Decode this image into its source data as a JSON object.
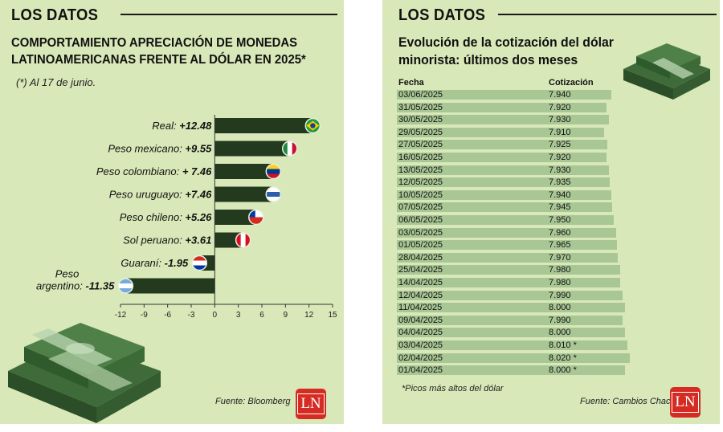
{
  "left": {
    "section_tag": "LOS DATOS",
    "title_line1": "COMPORTAMIENTO APRECIACIÓN DE MONEDAS",
    "title_line2": "LATINOAMERICANAS FRENTE AL DÓLAR EN 2025*",
    "note": "(*) Al 17 de junio.",
    "source": "Fuente: Bloomberg",
    "logo": "LN"
  },
  "right": {
    "section_tag": "LOS DATOS",
    "title_line1": "Evolución de la cotización del dólar",
    "title_line2": "minorista: últimos dos meses",
    "col_date": "Fecha",
    "col_value": "Cotización",
    "footnote": "*Picos más altos del dólar",
    "source": "Fuente: Cambios Chaco",
    "logo": "LN",
    "rows": [
      {
        "date": "03/06/2025",
        "value": "7.940",
        "num": 7940
      },
      {
        "date": "31/05/2025",
        "value": "7.920",
        "num": 7920
      },
      {
        "date": "30/05/2025",
        "value": "7.930",
        "num": 7930
      },
      {
        "date": "29/05/2025",
        "value": "7.910",
        "num": 7910
      },
      {
        "date": "27/05/2025",
        "value": "7.925",
        "num": 7925
      },
      {
        "date": "16/05/2025",
        "value": "7.920",
        "num": 7920
      },
      {
        "date": "13/05/2025",
        "value": "7.930",
        "num": 7930
      },
      {
        "date": "12/05/2025",
        "value": "7.935",
        "num": 7935
      },
      {
        "date": "10/05/2025",
        "value": "7.940",
        "num": 7940
      },
      {
        "date": "07/05/2025",
        "value": "7.945",
        "num": 7945
      },
      {
        "date": "06/05/2025",
        "value": "7.950",
        "num": 7950
      },
      {
        "date": "03/05/2025",
        "value": "7.960",
        "num": 7960
      },
      {
        "date": "01/05/2025",
        "value": "7.965",
        "num": 7965
      },
      {
        "date": "28/04/2025",
        "value": "7.970",
        "num": 7970
      },
      {
        "date": "25/04/2025",
        "value": "7.980",
        "num": 7980
      },
      {
        "date": "14/04/2025",
        "value": "7.980",
        "num": 7980
      },
      {
        "date": "12/04/2025",
        "value": "7.990",
        "num": 7990
      },
      {
        "date": "11/04/2025",
        "value": "8.000",
        "num": 8000
      },
      {
        "date": "09/04/2025",
        "value": "7.990",
        "num": 7990
      },
      {
        "date": "04/04/2025",
        "value": "8.000",
        "num": 8000
      },
      {
        "date": "03/04/2025",
        "value": "8.010 *",
        "num": 8010
      },
      {
        "date": "02/04/2025",
        "value": "8.020 *",
        "num": 8020
      },
      {
        "date": "01/04/2025",
        "value": "8.000 *",
        "num": 8000
      }
    ]
  },
  "chart_data": [
    {
      "type": "bar",
      "orientation": "horizontal",
      "title": "COMPORTAMIENTO APRECIACIÓN DE MONEDAS LATINOAMERICANAS FRENTE AL DÓLAR EN 2025*",
      "categories": [
        "Real",
        "Peso mexicano",
        "Peso colombiano",
        "Peso uruguayo",
        "Peso chileno",
        "Sol peruano",
        "Guaraní",
        "Peso argentino"
      ],
      "values": [
        12.48,
        9.55,
        7.46,
        7.46,
        5.26,
        3.61,
        -1.95,
        -11.35
      ],
      "labels": [
        "Real: +12.48",
        "Peso mexicano: +9.55",
        "Peso colombiano: + 7.46",
        "Peso uruguayo: +7.46",
        "Peso chileno: +5.26",
        "Sol peruano: +3.61",
        "Guaraní: -1.95",
        "argentino: -11.35"
      ],
      "label_prefix_extra": "Peso",
      "flags": [
        "brazil-flag",
        "mexico-flag",
        "colombia-flag",
        "uruguay-flag",
        "chile-flag",
        "peru-flag",
        "paraguay-flag",
        "argentina-flag"
      ],
      "xlim": [
        -12,
        15
      ],
      "xticks": [
        "-12",
        "-9",
        "-6",
        "-3",
        "0",
        "3",
        "6",
        "9",
        "12",
        "15"
      ],
      "bar_color": "#243a1e"
    },
    {
      "type": "table",
      "title": "Evolución de la cotización del dólar minorista: últimos dos meses",
      "columns": [
        "Fecha",
        "Cotización"
      ],
      "rows_ref": "right.rows"
    }
  ]
}
